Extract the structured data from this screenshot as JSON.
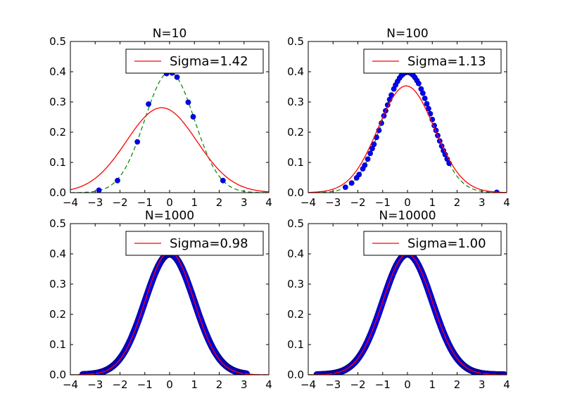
{
  "chart_data": [
    {
      "type": "scatter",
      "title": "N=10",
      "xlim": [
        -4,
        4
      ],
      "ylim": [
        0,
        0.5
      ],
      "xticks": [
        "−4",
        "−3",
        "−2",
        "−1",
        "0",
        "1",
        "2",
        "3",
        "4"
      ],
      "yticks": [
        "0.0",
        "0.1",
        "0.2",
        "0.3",
        "0.4",
        "0.5"
      ],
      "legend": {
        "label": "Sigma=1.42",
        "placement": "upper-right"
      },
      "mu": -0.32,
      "sigma": 1.42,
      "points": [
        {
          "x": -2.85,
          "y": 0.008
        },
        {
          "x": -2.1,
          "y": 0.04
        },
        {
          "x": -1.3,
          "y": 0.168
        },
        {
          "x": -0.85,
          "y": 0.293
        },
        {
          "x": -0.12,
          "y": 0.394
        },
        {
          "x": 0.1,
          "y": 0.396
        },
        {
          "x": 0.3,
          "y": 0.382
        },
        {
          "x": 0.75,
          "y": 0.299
        },
        {
          "x": 0.95,
          "y": 0.251
        },
        {
          "x": 2.15,
          "y": 0.04
        }
      ]
    },
    {
      "type": "scatter",
      "title": "N=100",
      "xlim": [
        -4,
        4
      ],
      "ylim": [
        0,
        0.5
      ],
      "xticks": [
        "−4",
        "−3",
        "−2",
        "−1",
        "0",
        "1",
        "2",
        "3",
        "4"
      ],
      "yticks": [
        "0.0",
        "0.1",
        "0.2",
        "0.3",
        "0.4",
        "0.5"
      ],
      "legend": {
        "label": "Sigma=1.13",
        "placement": "upper-right"
      },
      "mu": -0.05,
      "sigma": 1.13,
      "points": [
        {
          "x": -2.5,
          "y": 0.018
        },
        {
          "x": -2.25,
          "y": 0.032
        },
        {
          "x": -2.05,
          "y": 0.049
        },
        {
          "x": -1.95,
          "y": 0.06
        },
        {
          "x": -1.8,
          "y": 0.079
        },
        {
          "x": -1.72,
          "y": 0.091
        },
        {
          "x": -1.6,
          "y": 0.111
        },
        {
          "x": -1.5,
          "y": 0.13
        },
        {
          "x": -1.42,
          "y": 0.146
        },
        {
          "x": -1.35,
          "y": 0.16
        },
        {
          "x": -1.25,
          "y": 0.183
        },
        {
          "x": -1.15,
          "y": 0.206
        },
        {
          "x": -1.05,
          "y": 0.23
        },
        {
          "x": -0.95,
          "y": 0.254
        },
        {
          "x": -0.88,
          "y": 0.271
        },
        {
          "x": -0.8,
          "y": 0.29
        },
        {
          "x": -0.72,
          "y": 0.308
        },
        {
          "x": -0.65,
          "y": 0.323
        },
        {
          "x": -0.55,
          "y": 0.343
        },
        {
          "x": -0.48,
          "y": 0.356
        },
        {
          "x": -0.4,
          "y": 0.368
        },
        {
          "x": -0.32,
          "y": 0.379
        },
        {
          "x": -0.25,
          "y": 0.387
        },
        {
          "x": -0.18,
          "y": 0.392
        },
        {
          "x": -0.1,
          "y": 0.397
        },
        {
          "x": -0.05,
          "y": 0.398
        },
        {
          "x": 0.0,
          "y": 0.399
        },
        {
          "x": 0.05,
          "y": 0.398
        },
        {
          "x": 0.1,
          "y": 0.397
        },
        {
          "x": 0.15,
          "y": 0.394
        },
        {
          "x": 0.22,
          "y": 0.389
        },
        {
          "x": 0.3,
          "y": 0.381
        },
        {
          "x": 0.38,
          "y": 0.371
        },
        {
          "x": 0.45,
          "y": 0.361
        },
        {
          "x": 0.55,
          "y": 0.343
        },
        {
          "x": 0.62,
          "y": 0.329
        },
        {
          "x": 0.7,
          "y": 0.312
        },
        {
          "x": 0.78,
          "y": 0.294
        },
        {
          "x": 0.85,
          "y": 0.278
        },
        {
          "x": 0.92,
          "y": 0.261
        },
        {
          "x": 1.0,
          "y": 0.242
        },
        {
          "x": 1.08,
          "y": 0.222
        },
        {
          "x": 1.15,
          "y": 0.206
        },
        {
          "x": 1.22,
          "y": 0.189
        },
        {
          "x": 1.3,
          "y": 0.171
        },
        {
          "x": 1.38,
          "y": 0.154
        },
        {
          "x": 1.45,
          "y": 0.139
        },
        {
          "x": 1.52,
          "y": 0.126
        },
        {
          "x": 1.6,
          "y": 0.111
        },
        {
          "x": 1.68,
          "y": 0.097
        },
        {
          "x": 3.6,
          "y": 0.001
        }
      ]
    },
    {
      "type": "scatter",
      "title": "N=1000",
      "xlim": [
        -4,
        4
      ],
      "ylim": [
        0,
        0.5
      ],
      "xticks": [
        "−4",
        "−3",
        "−2",
        "−1",
        "0",
        "1",
        "2",
        "3",
        "4"
      ],
      "yticks": [
        "0.0",
        "0.1",
        "0.2",
        "0.3",
        "0.4",
        "0.5"
      ],
      "legend": {
        "label": "Sigma=0.98",
        "placement": "upper-right"
      },
      "mu": 0.0,
      "sigma": 0.98,
      "points_range": [
        -3.5,
        3.1
      ],
      "points": [
        {
          "x": -3.5,
          "y": 0.001
        },
        {
          "x": -3.3,
          "y": 0.002
        },
        {
          "x": -2.9,
          "y": 0.006
        },
        {
          "x": -2.7,
          "y": 0.01
        },
        {
          "x": 2.6,
          "y": 0.014
        },
        {
          "x": 3.05,
          "y": 0.004
        }
      ]
    },
    {
      "type": "scatter",
      "title": "N=10000",
      "xlim": [
        -4,
        4
      ],
      "ylim": [
        0,
        0.5
      ],
      "xticks": [
        "−4",
        "−3",
        "−2",
        "−1",
        "0",
        "1",
        "2",
        "3",
        "4"
      ],
      "yticks": [
        "0.0",
        "0.1",
        "0.2",
        "0.3",
        "0.4",
        "0.5"
      ],
      "legend": {
        "label": "Sigma=1.00",
        "placement": "upper-right"
      },
      "mu": 0.0,
      "sigma": 1.0,
      "points_range": [
        -3.65,
        3.9
      ],
      "points": [
        {
          "x": -3.65,
          "y": 0.001
        },
        {
          "x": -3.5,
          "y": 0.001
        },
        {
          "x": 3.2,
          "y": 0.002
        },
        {
          "x": 3.5,
          "y": 0.001
        },
        {
          "x": 3.9,
          "y": 0.0
        }
      ]
    }
  ],
  "colors": {
    "points": "#0000ff",
    "points_edge": "#000080",
    "fit": "#ff0000",
    "reference": "#008000"
  }
}
